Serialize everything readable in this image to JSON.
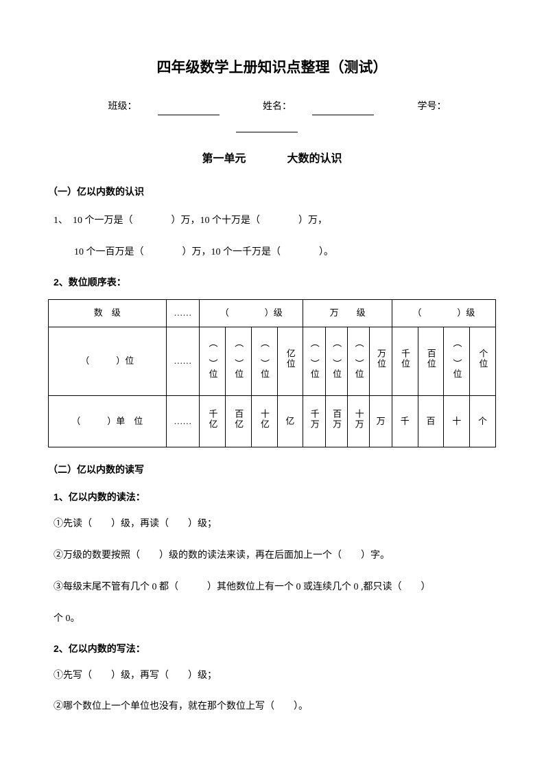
{
  "title": "四年级数学上册知识点整理（测试）",
  "info": {
    "class_label": "班级：",
    "name_label": "姓名：",
    "id_label": "学号："
  },
  "subtitle": {
    "unit": "第一单元",
    "topic": "大数的认识"
  },
  "section1": {
    "heading": "（一）亿以内数的认识",
    "line1": "1、　10 个一万是（　　　　）万，10 个十万是（　　　　）万，",
    "line2": "10 个一百万是（　　　　）万，10 个一千万是（　　　　）。",
    "sub2_heading": "2、数位顺序表："
  },
  "table": {
    "r1c1": "数　级",
    "r1c2": "……",
    "r1c3": "（　　　　）级",
    "r1c4": "万　　级",
    "r1c5": "（　　　　）级",
    "r2c1": "（　　　）位",
    "r2c2": "……",
    "r2c3": "︵　︶位",
    "r2c4": "︵　︶位",
    "r2c5": "︵　︶位",
    "r2c6": "亿位",
    "r2c7": "︵　︶位",
    "r2c8": "︵　︶位",
    "r2c9": "︵　︶位",
    "r2c10": "万位",
    "r2c11": "千位",
    "r2c12": "百位",
    "r2c13": "︵　︶位",
    "r2c14": "个位",
    "r3c1": "（　　　）单　位",
    "r3c2": "……",
    "r3c3": "千亿",
    "r3c4": "百亿",
    "r3c5": "十亿",
    "r3c6": "亿",
    "r3c7": "千万",
    "r3c8": "百万",
    "r3c9": "十万",
    "r3c10": "万",
    "r3c11": "千",
    "r3c12": "百",
    "r3c13": "十",
    "r3c14": "个"
  },
  "section2": {
    "heading": "（二）亿以内数的读写",
    "sub1_heading": "1、亿以内数的读法：",
    "line1": "①先读（　　）级，再读（　　）级；",
    "line2": "②万级的数要按照（　　）级的数的读法来读，再在后面加上一个（　　）字。",
    "line3": "③每级末尾不管有几个 0 都（　　　）其他数位上有一个 0 或连续几个 0 ,都只读（　　）",
    "line4": "个 0。",
    "sub2_heading": "2、亿以内数的写法：",
    "line5": "①先写（　　）级，再写（　　）级；",
    "line6": "②哪个数位上一个单位也没有，就在那个数位上写（　　）。"
  }
}
